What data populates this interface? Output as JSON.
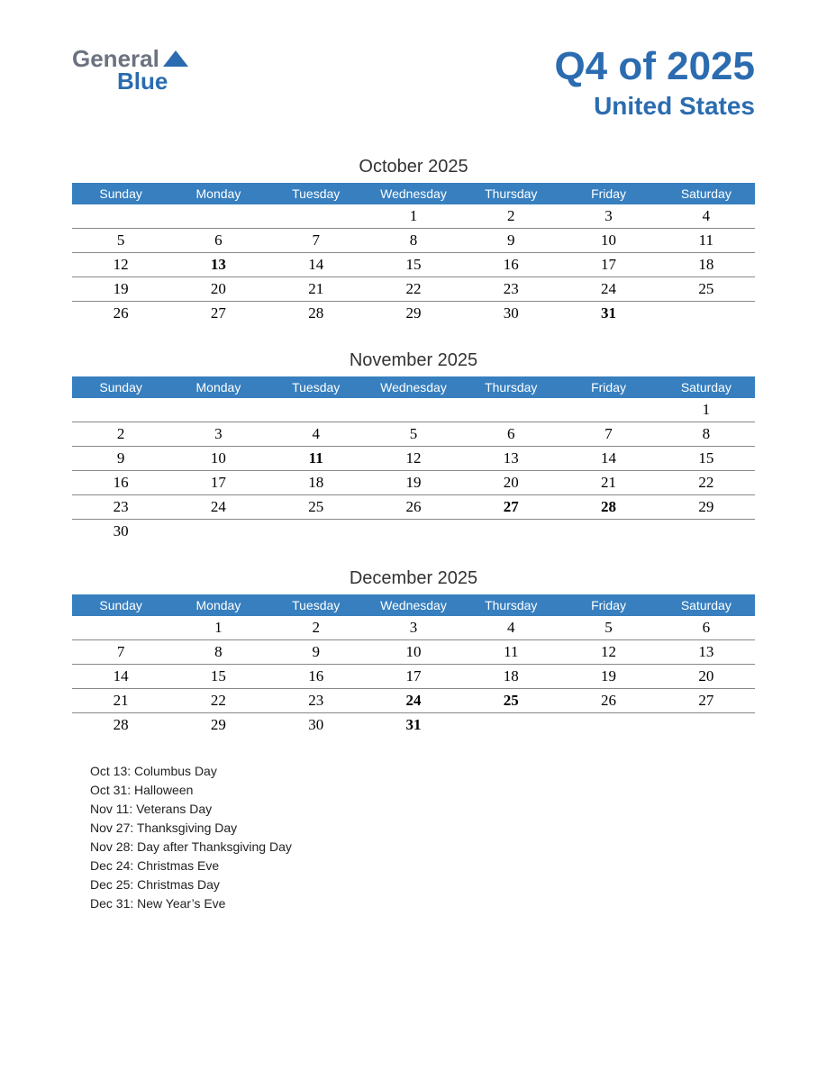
{
  "logo": {
    "word1": "General",
    "word2": "Blue"
  },
  "title": {
    "main": "Q4 of 2025",
    "sub": "United States"
  },
  "style": {
    "header_bg": "#377fbf",
    "header_text": "#ffffff",
    "holiday_color": "#c23030",
    "brand_color": "#2b6cb0",
    "border_color": "#888888",
    "page_bg": "#ffffff"
  },
  "day_headers": [
    "Sunday",
    "Monday",
    "Tuesday",
    "Wednesday",
    "Thursday",
    "Friday",
    "Saturday"
  ],
  "months": [
    {
      "title": "October 2025",
      "weeks": [
        [
          "",
          "",
          "",
          "1",
          "2",
          "3",
          "4"
        ],
        [
          "5",
          "6",
          "7",
          "8",
          "9",
          "10",
          "11"
        ],
        [
          "12",
          "13",
          "14",
          "15",
          "16",
          "17",
          "18"
        ],
        [
          "19",
          "20",
          "21",
          "22",
          "23",
          "24",
          "25"
        ],
        [
          "26",
          "27",
          "28",
          "29",
          "30",
          "31",
          ""
        ]
      ],
      "holidays": [
        "13",
        "31"
      ]
    },
    {
      "title": "November 2025",
      "weeks": [
        [
          "",
          "",
          "",
          "",
          "",
          "",
          "1"
        ],
        [
          "2",
          "3",
          "4",
          "5",
          "6",
          "7",
          "8"
        ],
        [
          "9",
          "10",
          "11",
          "12",
          "13",
          "14",
          "15"
        ],
        [
          "16",
          "17",
          "18",
          "19",
          "20",
          "21",
          "22"
        ],
        [
          "23",
          "24",
          "25",
          "26",
          "27",
          "28",
          "29"
        ],
        [
          "30",
          "",
          "",
          "",
          "",
          "",
          ""
        ]
      ],
      "holidays": [
        "11",
        "27",
        "28"
      ]
    },
    {
      "title": "December 2025",
      "weeks": [
        [
          "",
          "1",
          "2",
          "3",
          "4",
          "5",
          "6"
        ],
        [
          "7",
          "8",
          "9",
          "10",
          "11",
          "12",
          "13"
        ],
        [
          "14",
          "15",
          "16",
          "17",
          "18",
          "19",
          "20"
        ],
        [
          "21",
          "22",
          "23",
          "24",
          "25",
          "26",
          "27"
        ],
        [
          "28",
          "29",
          "30",
          "31",
          "",
          "",
          ""
        ]
      ],
      "holidays": [
        "24",
        "25",
        "31"
      ]
    }
  ],
  "holiday_list": [
    "Oct 13: Columbus Day",
    "Oct 31: Halloween",
    "Nov 11: Veterans Day",
    "Nov 27: Thanksgiving Day",
    "Nov 28: Day after Thanksgiving Day",
    "Dec 24: Christmas Eve",
    "Dec 25: Christmas Day",
    "Dec 31: New Year’s Eve"
  ]
}
